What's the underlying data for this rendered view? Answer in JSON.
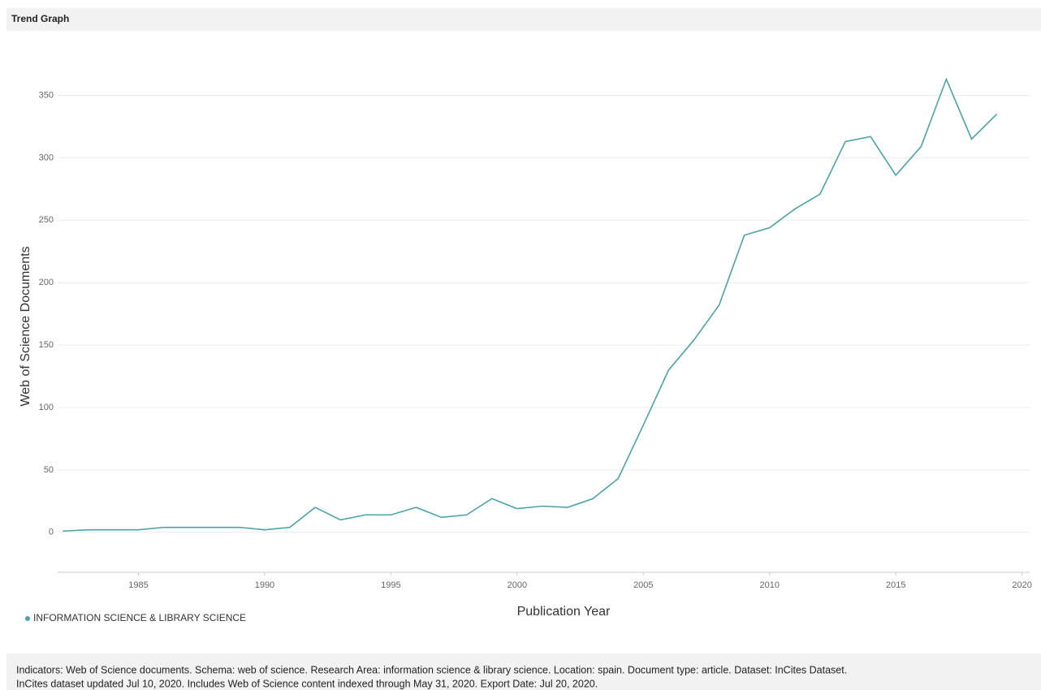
{
  "chart_data": {
    "type": "line",
    "title": "Trend Graph",
    "xlabel": "Publication Year",
    "ylabel": "Web of Science Documents",
    "x": [
      1982,
      1983,
      1984,
      1985,
      1986,
      1987,
      1988,
      1989,
      1990,
      1991,
      1992,
      1993,
      1994,
      1995,
      1996,
      1997,
      1998,
      1999,
      2000,
      2001,
      2002,
      2003,
      2004,
      2005,
      2006,
      2007,
      2008,
      2009,
      2010,
      2011,
      2012,
      2013,
      2014,
      2015,
      2016,
      2017,
      2018,
      2019
    ],
    "series": [
      {
        "name": "INFORMATION SCIENCE & LIBRARY SCIENCE",
        "color": "#4aa3a8",
        "values": [
          1,
          2,
          2,
          2,
          4,
          4,
          4,
          4,
          2,
          4,
          20,
          10,
          14,
          14,
          20,
          12,
          14,
          27,
          19,
          21,
          20,
          27,
          43,
          86,
          130,
          154,
          182,
          238,
          244,
          259,
          271,
          313,
          317,
          286,
          309,
          363,
          315,
          335
        ]
      }
    ],
    "xlim": [
      1981.8,
      2020.3
    ],
    "xticks": [
      1985,
      1990,
      1995,
      2000,
      2005,
      2010,
      2015,
      2020
    ],
    "ylim": [
      -32,
      390
    ],
    "yticks": [
      0,
      50,
      100,
      150,
      200,
      250,
      300,
      350
    ],
    "grid": true,
    "footer": [
      "Indicators: Web of Science documents. Schema: web of science. Research Area: information science & library science. Location: spain. Document type: article. Dataset: InCites Dataset.",
      "InCites dataset updated Jul 10, 2020. Includes Web of Science content indexed through May 31, 2020. Export Date: Jul 20, 2020."
    ]
  }
}
